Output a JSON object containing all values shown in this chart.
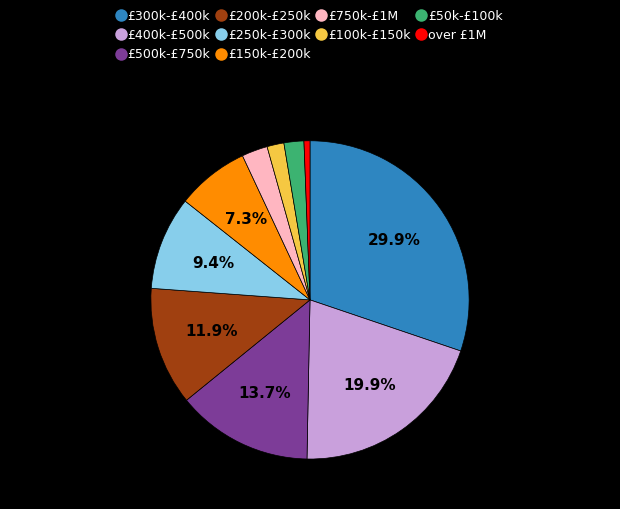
{
  "labels": [
    "£300k-£400k",
    "£400k-£500k",
    "£500k-£750k",
    "£200k-£250k",
    "£250k-£300k",
    "£150k-£200k",
    "£750k-£1M",
    "£100k-£150k",
    "£50k-£100k",
    "over £1M"
  ],
  "values": [
    29.9,
    19.9,
    13.7,
    11.9,
    9.4,
    7.3,
    2.6,
    1.7,
    2.0,
    0.6
  ],
  "colors": [
    "#2e86c1",
    "#c9a0dc",
    "#7d3c98",
    "#a04010",
    "#87ceeb",
    "#ff8c00",
    "#ffb6c1",
    "#f5c842",
    "#3cb371",
    "#ff0000"
  ],
  "autopct_labels": [
    "29.9%",
    "19.9%",
    "13.7%",
    "11.9%",
    "9.4%",
    "7.3%",
    "",
    "",
    "",
    ""
  ],
  "background_color": "#000000",
  "text_color": "#ffffff",
  "label_fontsize": 11,
  "legend_fontsize": 9,
  "legend_labels": [
    "£300k-£400k",
    "£400k-£500k",
    "£500k-£750k",
    "£200k-£250k",
    "£250k-£300k",
    "£150k-£200k",
    "£750k-£1M",
    "£100k-£150k",
    "£50k-£100k",
    "over £1M"
  ]
}
